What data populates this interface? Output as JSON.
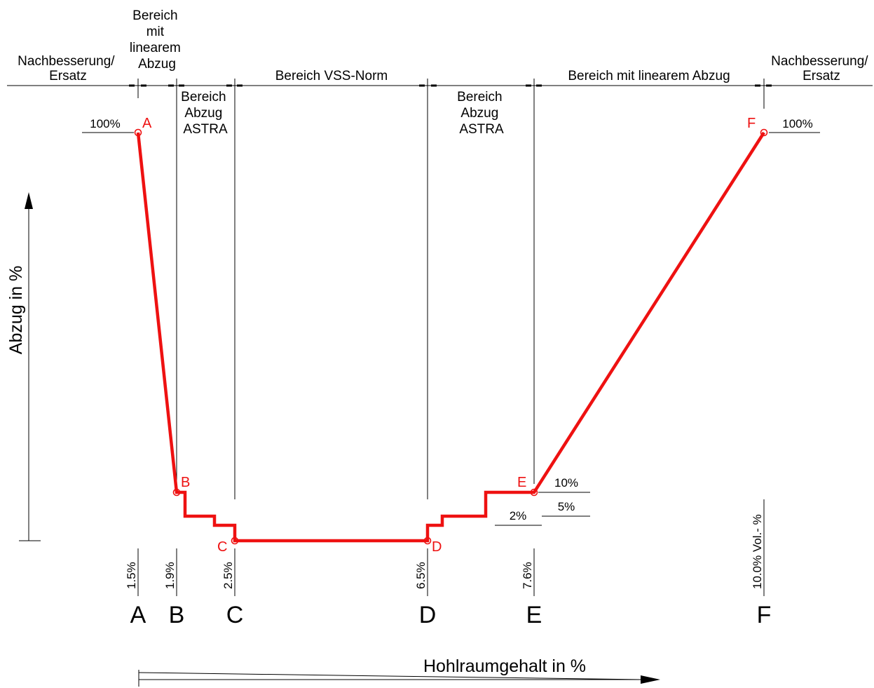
{
  "regions": {
    "left_repair": [
      "Nachbesserung/",
      "Ersatz"
    ],
    "left_linear": [
      "Bereich",
      "mit",
      "linearem",
      "Abzug"
    ],
    "left_astra": [
      "Bereich",
      "Abzug",
      "ASTRA"
    ],
    "vss": "Bereich VSS-Norm",
    "right_astra": [
      "Bereich",
      "Abzug",
      "ASTRA"
    ],
    "right_linear": "Bereich mit linearem Abzug",
    "right_repair": [
      "Nachbesserung/",
      "Ersatz"
    ]
  },
  "percent_labels": {
    "a_top": "100%",
    "f_top": "100%",
    "e_10": "10%",
    "e_5": "5%",
    "e_2": "2%"
  },
  "point_letters": [
    "A",
    "B",
    "C",
    "D",
    "E",
    "F"
  ],
  "x_values": [
    "1.5%",
    "1.9%",
    "2.5%",
    "6.5%",
    "7.6%",
    "10.0% Vol.- %"
  ],
  "axis": {
    "y_title": "Abzug in %",
    "x_title": "Hohlraumgehalt in %"
  },
  "colors": {
    "curve": "#ee1111",
    "lines": "#000000"
  }
}
